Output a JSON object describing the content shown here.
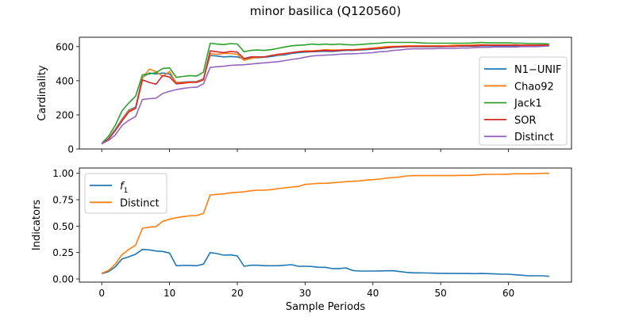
{
  "figure": {
    "title": "minor basilica (Q120560)"
  },
  "chart_data": [
    {
      "type": "line",
      "ylabel": "Cardinality",
      "xlabel": "",
      "xlim": [
        -3.3,
        69.3
      ],
      "ylim": [
        0,
        655
      ],
      "xticks": [
        0,
        10,
        20,
        30,
        40,
        50,
        60
      ],
      "yticks": [
        0,
        200,
        400,
        600
      ],
      "xtick_labels_visible": false,
      "legend": "center-right",
      "grid": false,
      "x": [
        0,
        1,
        2,
        3,
        4,
        5,
        6,
        7,
        8,
        9,
        10,
        11,
        12,
        13,
        14,
        15,
        16,
        17,
        18,
        19,
        20,
        21,
        22,
        23,
        24,
        25,
        26,
        27,
        28,
        29,
        30,
        31,
        32,
        33,
        34,
        35,
        36,
        37,
        38,
        39,
        40,
        41,
        42,
        43,
        44,
        45,
        46,
        47,
        48,
        49,
        50,
        51,
        52,
        53,
        54,
        55,
        56,
        57,
        58,
        59,
        60,
        61,
        62,
        63,
        64,
        65,
        66
      ],
      "series": [
        {
          "name": "N1−UNIF",
          "color": "#1f77b4",
          "values": [
            33,
            60,
            115,
            175,
            228,
            245,
            420,
            445,
            440,
            445,
            440,
            390,
            392,
            395,
            395,
            412,
            548,
            545,
            540,
            542,
            540,
            528,
            535,
            535,
            538,
            542,
            548,
            552,
            560,
            565,
            568,
            570,
            572,
            573,
            572,
            575,
            578,
            578,
            580,
            582,
            585,
            588,
            592,
            596,
            598,
            600,
            600,
            600,
            600,
            600,
            600,
            602,
            602,
            603,
            603,
            603,
            605,
            605,
            605,
            605,
            605,
            605,
            606,
            606,
            606,
            606,
            606
          ]
        },
        {
          "name": "Chao92",
          "color": "#ff7f0e",
          "values": [
            32,
            58,
            110,
            170,
            225,
            240,
            415,
            468,
            455,
            425,
            455,
            388,
            390,
            393,
            392,
            410,
            560,
            555,
            560,
            560,
            555,
            520,
            530,
            538,
            540,
            548,
            552,
            558,
            565,
            570,
            575,
            575,
            578,
            582,
            580,
            580,
            582,
            582,
            585,
            588,
            592,
            596,
            600,
            602,
            602,
            605,
            605,
            605,
            605,
            605,
            605,
            605,
            608,
            608,
            608,
            610,
            612,
            610,
            610,
            610,
            610,
            610,
            608,
            608,
            608,
            610,
            610
          ]
        },
        {
          "name": "Jack1",
          "color": "#2ca02c",
          "values": [
            33,
            75,
            140,
            225,
            270,
            310,
            435,
            440,
            448,
            472,
            475,
            420,
            425,
            430,
            428,
            450,
            620,
            615,
            612,
            618,
            615,
            570,
            578,
            580,
            578,
            582,
            590,
            598,
            605,
            608,
            610,
            615,
            612,
            615,
            612,
            615,
            612,
            610,
            612,
            615,
            618,
            620,
            625,
            625,
            625,
            625,
            625,
            622,
            620,
            620,
            620,
            620,
            620,
            620,
            620,
            622,
            625,
            622,
            622,
            622,
            622,
            620,
            620,
            618,
            618,
            618,
            615
          ]
        },
        {
          "name": "SOR",
          "color": "#d62728",
          "values": [
            31,
            58,
            108,
            165,
            218,
            238,
            405,
            390,
            380,
            430,
            422,
            382,
            385,
            390,
            390,
            405,
            575,
            570,
            565,
            572,
            568,
            530,
            540,
            540,
            540,
            548,
            555,
            560,
            565,
            570,
            572,
            572,
            575,
            578,
            575,
            578,
            580,
            580,
            582,
            585,
            588,
            590,
            595,
            598,
            600,
            600,
            602,
            602,
            602,
            602,
            602,
            602,
            602,
            605,
            605,
            605,
            608,
            608,
            608,
            608,
            608,
            608,
            608,
            608,
            608,
            608,
            608
          ]
        },
        {
          "name": "Distinct",
          "color": "#9467bd",
          "values": [
            30,
            50,
            82,
            138,
            168,
            190,
            290,
            295,
            298,
            325,
            338,
            348,
            355,
            360,
            362,
            382,
            478,
            482,
            485,
            490,
            492,
            494,
            498,
            502,
            505,
            508,
            512,
            518,
            525,
            530,
            538,
            545,
            548,
            550,
            552,
            555,
            558,
            558,
            560,
            562,
            565,
            570,
            572,
            578,
            580,
            586,
            587,
            587,
            588,
            588,
            590,
            590,
            590,
            592,
            592,
            594,
            596,
            596,
            598,
            598,
            598,
            598,
            600,
            600,
            600,
            602,
            604
          ]
        }
      ]
    },
    {
      "type": "line",
      "ylabel": "Indicators",
      "xlabel": "Sample Periods",
      "xlim": [
        -3.3,
        69.3
      ],
      "ylim": [
        -0.03,
        1.05
      ],
      "xticks": [
        0,
        10,
        20,
        30,
        40,
        50,
        60
      ],
      "yticks": [
        0.0,
        0.25,
        0.5,
        0.75,
        1.0
      ],
      "ytick_labels": [
        "0.00",
        "0.25",
        "0.50",
        "0.75",
        "1.00"
      ],
      "legend": "top-left",
      "grid": false,
      "x": [
        0,
        1,
        2,
        3,
        4,
        5,
        6,
        7,
        8,
        9,
        10,
        11,
        12,
        13,
        14,
        15,
        16,
        17,
        18,
        19,
        20,
        21,
        22,
        23,
        24,
        25,
        26,
        27,
        28,
        29,
        30,
        31,
        32,
        33,
        34,
        35,
        36,
        37,
        38,
        39,
        40,
        41,
        42,
        43,
        44,
        45,
        46,
        47,
        48,
        49,
        50,
        51,
        52,
        53,
        54,
        55,
        56,
        57,
        58,
        59,
        60,
        61,
        62,
        63,
        64,
        65,
        66
      ],
      "series": [
        {
          "name": "f1",
          "name_main": "f",
          "name_sub": "1",
          "color": "#1f77b4",
          "values": [
            0.05,
            0.07,
            0.115,
            0.19,
            0.21,
            0.235,
            0.28,
            0.275,
            0.265,
            0.26,
            0.245,
            0.125,
            0.128,
            0.128,
            0.125,
            0.14,
            0.25,
            0.24,
            0.225,
            0.228,
            0.218,
            0.12,
            0.13,
            0.13,
            0.125,
            0.125,
            0.125,
            0.13,
            0.135,
            0.12,
            0.12,
            0.118,
            0.11,
            0.11,
            0.098,
            0.098,
            0.105,
            0.08,
            0.075,
            0.075,
            0.075,
            0.076,
            0.077,
            0.078,
            0.07,
            0.062,
            0.058,
            0.058,
            0.056,
            0.055,
            0.053,
            0.053,
            0.052,
            0.052,
            0.052,
            0.05,
            0.052,
            0.05,
            0.048,
            0.045,
            0.045,
            0.04,
            0.035,
            0.03,
            0.03,
            0.03,
            0.025
          ]
        },
        {
          "name": "Distinct",
          "color": "#ff7f0e",
          "values": [
            0.055,
            0.08,
            0.14,
            0.23,
            0.28,
            0.32,
            0.48,
            0.49,
            0.495,
            0.545,
            0.565,
            0.58,
            0.59,
            0.598,
            0.6,
            0.62,
            0.795,
            0.8,
            0.805,
            0.815,
            0.82,
            0.825,
            0.835,
            0.84,
            0.84,
            0.845,
            0.855,
            0.862,
            0.87,
            0.875,
            0.895,
            0.9,
            0.905,
            0.905,
            0.91,
            0.915,
            0.92,
            0.925,
            0.928,
            0.935,
            0.94,
            0.945,
            0.955,
            0.96,
            0.965,
            0.975,
            0.978,
            0.978,
            0.978,
            0.978,
            0.978,
            0.978,
            0.978,
            0.98,
            0.98,
            0.982,
            0.988,
            0.99,
            0.99,
            0.99,
            0.992,
            0.995,
            0.995,
            0.995,
            0.997,
            1.0,
            1.0
          ]
        }
      ]
    }
  ]
}
